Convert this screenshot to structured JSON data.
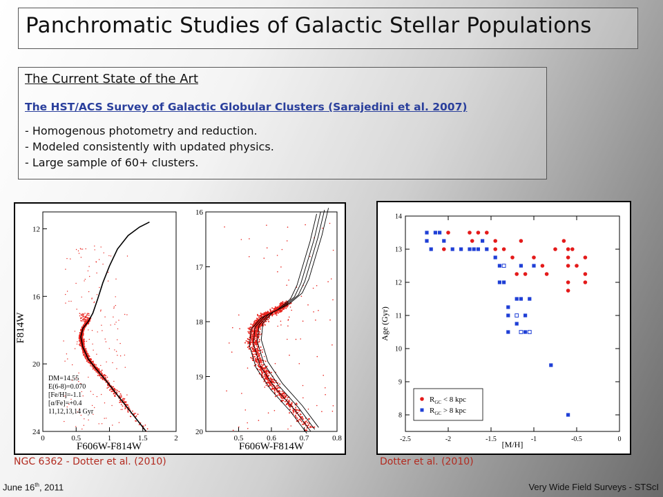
{
  "slide": {
    "title": "Panchromatic Studies of Galactic Stellar Populations",
    "section_title": "The Current State of the Art",
    "survey_link": "The HST/ACS Survey of Galactic Globular Clusters (Sarajedini et al. 2007)",
    "bullets": [
      "- Homogenous photometry and reduction.",
      "- Modeled consistently with updated physics.",
      "- Large sample of 60+ clusters."
    ],
    "caption_left": "NGC 6362 - Dotter et al. (2010)",
    "caption_right": "Dotter et al. (2010)",
    "footer_left": "June 16",
    "footer_left_sup": "th",
    "footer_left_tail": ", 2011",
    "footer_right": "Very Wide Field Surveys - STScI"
  },
  "cmd_left": {
    "xlabel": "F606W-F814W",
    "ylabel": "F814W",
    "xticks": [
      "0",
      "0.5",
      "1",
      "1.5",
      "2"
    ],
    "yticks": [
      "12",
      "16",
      "20",
      "24"
    ],
    "params": [
      "DM=14.55",
      "E(6-8)=0.070",
      "[Fe/H]=-1.1",
      "[α/Fe]=+0.4",
      "11,12,13,14 Gyr"
    ]
  },
  "cmd_right": {
    "xlabel": "F606W-F814W",
    "xticks": [
      "0.5",
      "0.6",
      "0.7",
      "0.8"
    ],
    "yticks": [
      "16",
      "17",
      "18",
      "19",
      "20"
    ]
  },
  "chart_data": {
    "type": "scatter",
    "xlabel": "[M/H]",
    "ylabel": "Age (Gyr)",
    "xlim": [
      -2.5,
      0
    ],
    "ylim": [
      7.5,
      14
    ],
    "xticks": [
      "-2.5",
      "-2",
      "-1.5",
      "-1",
      "-0.5",
      "0"
    ],
    "yticks": [
      "8",
      "9",
      "10",
      "11",
      "12",
      "13",
      "14"
    ],
    "legend_position": "bottom-left",
    "series": [
      {
        "name": "R_GC < 8 kpc",
        "legend": [
          "R",
          "GC",
          " < 8 kpc"
        ],
        "color": "#e41a1a",
        "marker": "circle",
        "points": [
          [
            -2.0,
            13.5
          ],
          [
            -2.05,
            13.0
          ],
          [
            -1.75,
            13.5
          ],
          [
            -1.72,
            13.25
          ],
          [
            -1.65,
            13.5
          ],
          [
            -1.55,
            13.5
          ],
          [
            -1.45,
            13.25
          ],
          [
            -1.35,
            13.0
          ],
          [
            -1.25,
            12.75
          ],
          [
            -1.2,
            12.25
          ],
          [
            -1.1,
            12.25
          ],
          [
            -1.0,
            12.75
          ],
          [
            -0.9,
            12.5
          ],
          [
            -0.85,
            12.25
          ],
          [
            -0.75,
            13.0
          ],
          [
            -0.65,
            13.25
          ],
          [
            -0.6,
            13.0
          ],
          [
            -0.55,
            13.0
          ],
          [
            -0.6,
            12.75
          ],
          [
            -0.5,
            12.5
          ],
          [
            -0.6,
            12.5
          ],
          [
            -0.6,
            12.0
          ],
          [
            -0.6,
            11.75
          ],
          [
            -0.4,
            12.75
          ],
          [
            -0.4,
            12.25
          ],
          [
            -0.4,
            12.0
          ],
          [
            -1.15,
            13.25
          ],
          [
            -1.45,
            13.0
          ]
        ]
      },
      {
        "name": "R_GC > 8 kpc",
        "legend": [
          "R",
          "GC",
          " > 8 kpc"
        ],
        "color": "#1f3fd6",
        "marker": "square",
        "points": [
          [
            -2.25,
            13.5
          ],
          [
            -2.25,
            13.25
          ],
          [
            -2.15,
            13.5
          ],
          [
            -2.1,
            13.5
          ],
          [
            -2.05,
            13.25
          ],
          [
            -2.2,
            13.0
          ],
          [
            -1.95,
            13.0
          ],
          [
            -1.85,
            13.0
          ],
          [
            -1.75,
            13.0
          ],
          [
            -1.7,
            13.0
          ],
          [
            -1.65,
            13.0
          ],
          [
            -1.6,
            13.25
          ],
          [
            -1.55,
            13.0
          ],
          [
            -1.45,
            12.75
          ],
          [
            -1.4,
            12.5
          ],
          [
            -1.35,
            12.0
          ],
          [
            -1.3,
            11.25
          ],
          [
            -1.3,
            11.0
          ],
          [
            -1.3,
            10.5
          ],
          [
            -1.2,
            11.5
          ],
          [
            -1.15,
            11.5
          ],
          [
            -1.1,
            11.0
          ],
          [
            -1.05,
            11.5
          ],
          [
            -1.05,
            10.5
          ],
          [
            -1.0,
            12.5
          ],
          [
            -1.15,
            12.5
          ],
          [
            -0.8,
            9.5
          ],
          [
            -0.6,
            8.0
          ],
          [
            -1.4,
            12.0
          ],
          [
            -1.2,
            10.75
          ],
          [
            -1.1,
            10.5
          ]
        ]
      },
      {
        "name": "",
        "color": "#1f3fd6",
        "marker": "square-open",
        "points": [
          [
            -1.35,
            12.5
          ],
          [
            -1.2,
            11.0
          ],
          [
            -1.15,
            10.5
          ],
          [
            -1.05,
            10.5
          ]
        ]
      }
    ]
  },
  "colors": {
    "accent_text": "#111111",
    "link": "#2a3f9c",
    "caption": "#b22a1f",
    "cmd_points": "#e8231d"
  }
}
